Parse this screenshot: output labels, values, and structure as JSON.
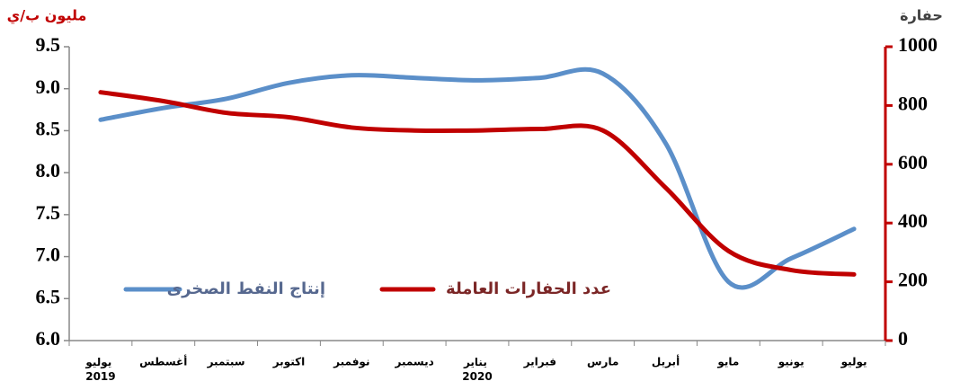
{
  "chart_data": {
    "type": "line",
    "y_label": "مليون ب/ي",
    "y2_label": "حفارة",
    "categories": [
      "يوليو 2019",
      "أغسطس",
      "سبتمبر",
      "اكتوبر",
      "نوفمبر",
      "ديسمبر",
      "يناير 2020",
      "فبراير",
      "مارس",
      "أبريل",
      "مايو",
      "يونيو",
      "يوليو"
    ],
    "series": [
      {
        "name": "إنتاج النفط الصخرى",
        "color": "#5b8fc9",
        "text_color": "#56688f",
        "axis": "y",
        "values": [
          8.63,
          8.77,
          8.88,
          9.07,
          9.16,
          9.13,
          9.1,
          9.13,
          9.18,
          8.35,
          6.7,
          6.98,
          7.33
        ]
      },
      {
        "name": "عدد الحفارات العاملة",
        "color": "#c00000",
        "text_color": "#7b2626",
        "axis": "y2",
        "values": [
          845,
          815,
          775,
          760,
          725,
          715,
          715,
          720,
          715,
          520,
          305,
          240,
          225
        ]
      }
    ],
    "ylim": [
      6.0,
      9.5
    ],
    "yticks": [
      {
        "value": 6.0,
        "label": "6.0"
      },
      {
        "value": 6.5,
        "label": "6.5"
      },
      {
        "value": 7.0,
        "label": "7.0"
      },
      {
        "value": 7.5,
        "label": "7.5"
      },
      {
        "value": 8.0,
        "label": "8.0"
      },
      {
        "value": 8.5,
        "label": "8.5"
      },
      {
        "value": 9.0,
        "label": "9.0"
      },
      {
        "value": 9.5,
        "label": "9.5"
      }
    ],
    "y2lim": [
      0,
      1000
    ],
    "y2ticks": [
      0,
      200,
      400,
      600,
      800,
      1000
    ],
    "legend": "center-left",
    "grid": false
  }
}
